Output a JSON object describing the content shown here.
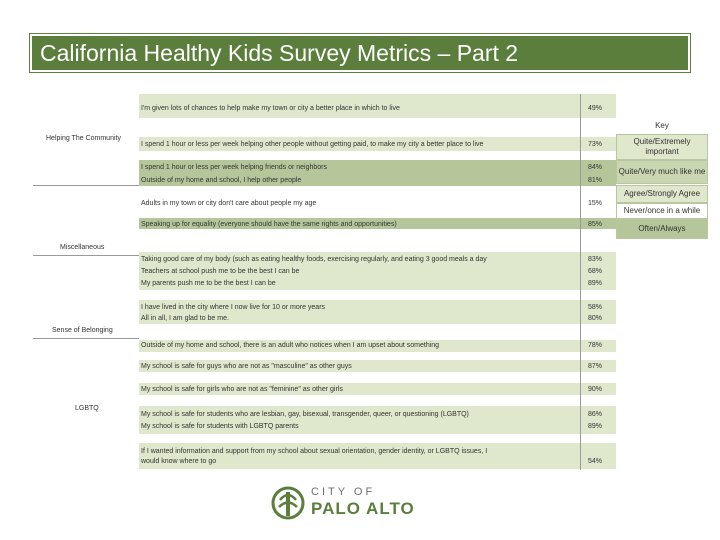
{
  "title": "California Healthy Kids Survey Metrics – Part 2",
  "categories": {
    "helping": "Helping The Community",
    "misc": "Miscellaneous",
    "belonging": "Sense of Belonging",
    "lgbtq": "LGBTQ"
  },
  "rows": [
    {
      "text": "I'm given lots of chances to help make my town or city a better place in which to live",
      "value": "49%"
    },
    {
      "text": "I spend 1 hour or less per week helping other people without getting paid, to make my city a better place to live",
      "value": "73%"
    },
    {
      "text": "I spend 1 hour or less per week helping friends or neighbors",
      "value": "84%"
    },
    {
      "text": "Outside of my home and school, I help other people",
      "value": "81%"
    },
    {
      "text": "Adults in my town or city don't care about people my age",
      "value": "15%"
    },
    {
      "text": "Speaking up for equality (everyone should have the same rights and opportunities)",
      "value": "85%"
    },
    {
      "text": "Taking good care of my body (such as eating healthy foods, exercising regularly, and eating 3 good meals a day",
      "value": "83%"
    },
    {
      "text": "Teachers at school push me to be the best I can be",
      "value": "68%"
    },
    {
      "text": "My parents push me to be the best I can be",
      "value": "89%"
    },
    {
      "text": "I have lived in the city where I now live for 10 or more years",
      "value": "58%"
    },
    {
      "text": "All in all, I am glad to be me.",
      "value": "80%"
    },
    {
      "text": "Outside of my home and school, there is an adult who notices when I am upset about something",
      "value": "78%"
    },
    {
      "text": "My school is safe for guys who are not as \"masculine\" as other guys",
      "value": "87%"
    },
    {
      "text": "My school is safe for girls who are not as \"feminine\" as other girls",
      "value": "90%"
    },
    {
      "text": "My school is safe for students who are lesbian, gay, bisexual, transgender, queer, or questioning (LGBTQ)",
      "value": "86%"
    },
    {
      "text": "My school is safe for students with LGBTQ parents",
      "value": "89%"
    },
    {
      "text": "If I wanted information and support from my school about sexual orientation, gender identity, or LGBTQ issues, I",
      "text2": "would know where to go",
      "value": "54%"
    }
  ],
  "key": {
    "title": "Key",
    "items": [
      {
        "label": "Quite/Extremely important",
        "color": "#dfe7cc"
      },
      {
        "label": "Quite/Very much like me",
        "color": "#c9d6b1"
      },
      {
        "label": "Agree/Strongly Agree",
        "color": "#dfe7cc"
      },
      {
        "label": "Never/once in a while",
        "color": "#ffffff"
      },
      {
        "label": "Often/Always",
        "color": "#b5c79a"
      }
    ]
  },
  "logo": {
    "line1": "CITY OF",
    "line2": "PALO ALTO",
    "color": "#5b7e3c"
  }
}
